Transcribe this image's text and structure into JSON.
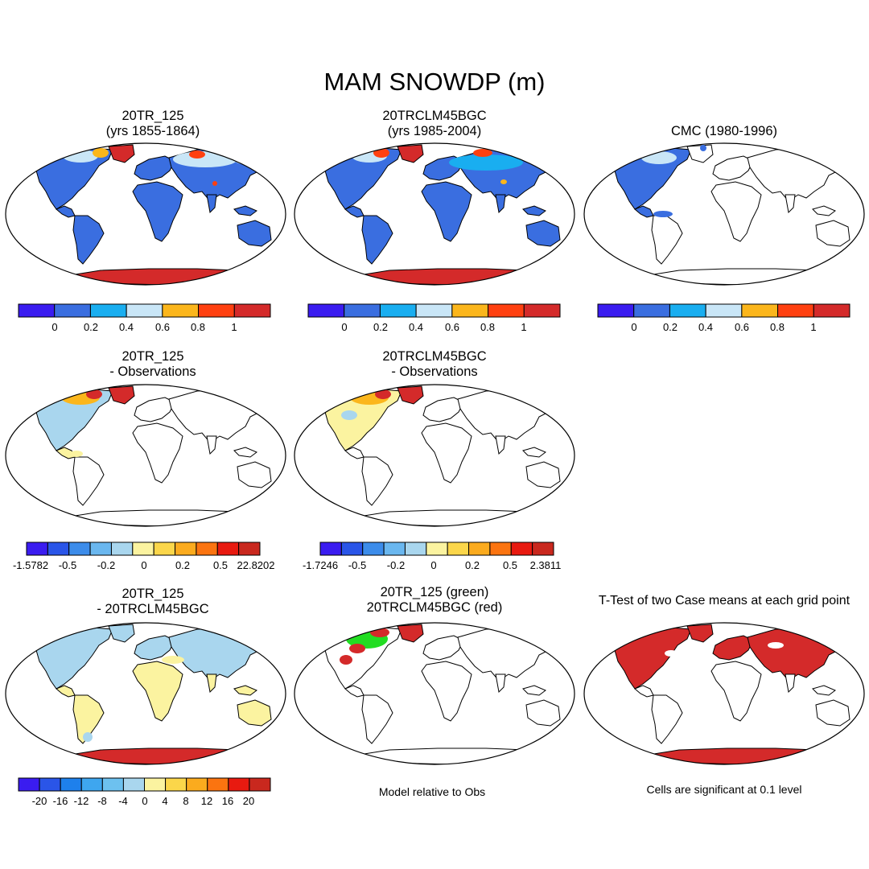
{
  "title": "MAM SNOWDP (m)",
  "colors": {
    "snow_scale": [
      "#3a1cf0",
      "#3a6ee0",
      "#19aef0",
      "#c9e6f7",
      "#fbb61c",
      "#ff4010",
      "#d42a2a"
    ],
    "diff_scale_obs": [
      "#3a1cf0",
      "#2a55e8",
      "#3c8cea",
      "#6ab7ef",
      "#a9d6ee",
      "#fbf3a0",
      "#fbd64a",
      "#fbab1e",
      "#fb7410",
      "#e81a10",
      "#c9281e"
    ],
    "diff_scale_case": [
      "#3a1cf0",
      "#2a55e8",
      "#1e80ec",
      "#3ea6ef",
      "#6dc1ef",
      "#a9d6ee",
      "#fbf3a0",
      "#fbd64a",
      "#fbab1e",
      "#fb7410",
      "#e81a10",
      "#c9281e"
    ],
    "land_outline": "#000000"
  },
  "panels": [
    {
      "id": "p1",
      "title_lines": [
        "20TR_125",
        "(yrs 1855-1864)"
      ]
    },
    {
      "id": "p2",
      "title_lines": [
        "20TRCLM45BGC",
        "(yrs 1985-2004)"
      ]
    },
    {
      "id": "p3",
      "title_lines": [
        "CMC (1980-1996)"
      ]
    },
    {
      "id": "p4",
      "title_lines": [
        "20TR_125",
        "- Observations"
      ]
    },
    {
      "id": "p5",
      "title_lines": [
        "20TRCLM45BGC",
        "- Observations"
      ]
    },
    {
      "id": "p6",
      "title_lines": [
        "20TR_125",
        "- 20TRCLM45BGC"
      ]
    },
    {
      "id": "p7",
      "title_lines": [
        "20TR_125 (green)",
        "20TRCLM45BGC (red)"
      ]
    },
    {
      "id": "p8",
      "title_lines": [
        "T-Test of two Case means at each grid point"
      ]
    }
  ],
  "chart_data": [
    {
      "type": "heatmap",
      "title": "20TR_125 (yrs 1855-1864)",
      "colorbar_ticks": [
        "0",
        "0.2",
        "0.4",
        "0.6",
        "0.8",
        "1"
      ],
      "colorbar_range": [
        0,
        1
      ]
    },
    {
      "type": "heatmap",
      "title": "20TRCLM45BGC (yrs 1985-2004)",
      "colorbar_ticks": [
        "0",
        "0.2",
        "0.4",
        "0.6",
        "0.8",
        "1"
      ],
      "colorbar_range": [
        0,
        1
      ]
    },
    {
      "type": "heatmap",
      "title": "CMC (1980-1996)",
      "colorbar_ticks": [
        "0",
        "0.2",
        "0.4",
        "0.6",
        "0.8",
        "1"
      ],
      "colorbar_range": [
        0,
        1
      ]
    },
    {
      "type": "heatmap",
      "title": "20TR_125 - Observations",
      "colorbar_ticks": [
        "-1.5782",
        "-0.5",
        "-0.2",
        "0",
        "0.2",
        "0.5",
        "22.8202"
      ],
      "colorbar_range": [
        -1.5782,
        22.8202
      ]
    },
    {
      "type": "heatmap",
      "title": "20TRCLM45BGC - Observations",
      "colorbar_ticks": [
        "-1.7246",
        "-0.5",
        "-0.2",
        "0",
        "0.2",
        "0.5",
        "2.3811"
      ],
      "colorbar_range": [
        -1.7246,
        2.3811
      ]
    },
    {
      "type": "heatmap",
      "title": "20TR_125 - 20TRCLM45BGC",
      "colorbar_ticks": [
        "-20",
        "-16",
        "-12",
        "-8",
        "-4",
        "0",
        "4",
        "8",
        "12",
        "16",
        "20"
      ],
      "colorbar_range": [
        -20,
        20
      ]
    },
    {
      "type": "heatmap",
      "title": "20TR_125 (green) 20TRCLM45BGC (red)",
      "note": "Model relative to Obs"
    },
    {
      "type": "heatmap",
      "title": "T-Test of two Case means at each grid point",
      "note": "Cells are significant at 0.1 level"
    }
  ],
  "notes": {
    "p7": "Model relative to Obs",
    "p8": "Cells are significant at 0.1 level"
  }
}
